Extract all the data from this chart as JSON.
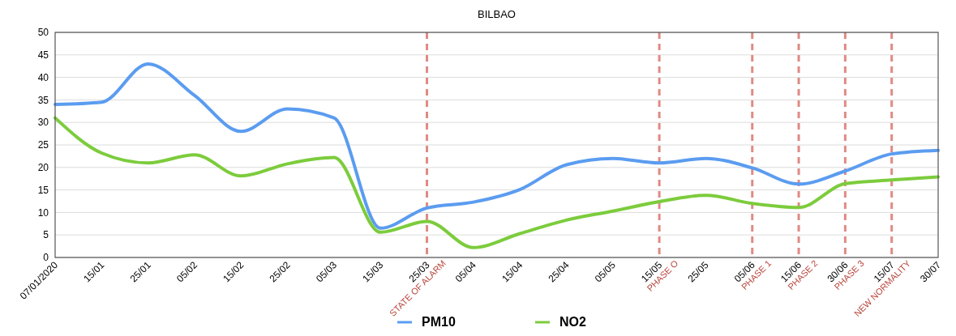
{
  "chart_data": {
    "type": "line",
    "title": "BILBAO",
    "categories": [
      "07/01/2020",
      "15/01",
      "25/01",
      "05/02",
      "15/02",
      "25/02",
      "05/03",
      "15/03",
      "25/03",
      "05/04",
      "15/04",
      "25/04",
      "05/05",
      "15/05",
      "25/05",
      "05/06",
      "15/06",
      "30/06",
      "15/07",
      "30/07"
    ],
    "series": [
      {
        "name": "PM10",
        "color": "#5b9cf0",
        "values": [
          34,
          34.5,
          43,
          36,
          28,
          33,
          31,
          6.5,
          11,
          12.3,
          15.1,
          20.6,
          22,
          21,
          22,
          19.9,
          16.3,
          19.2,
          23,
          23.8
        ]
      },
      {
        "name": "NO2",
        "color": "#7ccc3c",
        "values": [
          31,
          23.2,
          21,
          22.8,
          18.1,
          20.8,
          22.2,
          5.6,
          8,
          2.2,
          5.3,
          8.3,
          10.3,
          12.4,
          13.8,
          12,
          11.1,
          16.4,
          17.2,
          17.9
        ]
      }
    ],
    "ylim": [
      0,
      50
    ],
    "yticks": [
      0,
      5,
      10,
      15,
      20,
      25,
      30,
      35,
      40,
      45,
      50
    ],
    "grid": "y",
    "legend": "bottom",
    "marker": "none",
    "line_style": "solid",
    "ref_lines": [
      {
        "axis": "x",
        "value": "25/03",
        "label": "STATE OF ALARM",
        "color": "#e08a84",
        "line_style": "dashed"
      },
      {
        "axis": "x",
        "value": "15/05",
        "label": "PHASE O",
        "color": "#e08a84",
        "line_style": "dashed"
      },
      {
        "axis": "x",
        "value": "05/06",
        "label": "PHASE 1",
        "color": "#e08a84",
        "line_style": "dashed"
      },
      {
        "axis": "x",
        "value": "15/06",
        "label": "PHASE 2",
        "color": "#e08a84",
        "line_style": "dashed"
      },
      {
        "axis": "x",
        "value": "30/06",
        "label": "PHASE 3",
        "color": "#e08a84",
        "line_style": "dashed"
      },
      {
        "axis": "x",
        "value": "15/07",
        "label": "NEW NORMALITY",
        "color": "#e08a84",
        "line_style": "dashed"
      }
    ]
  }
}
